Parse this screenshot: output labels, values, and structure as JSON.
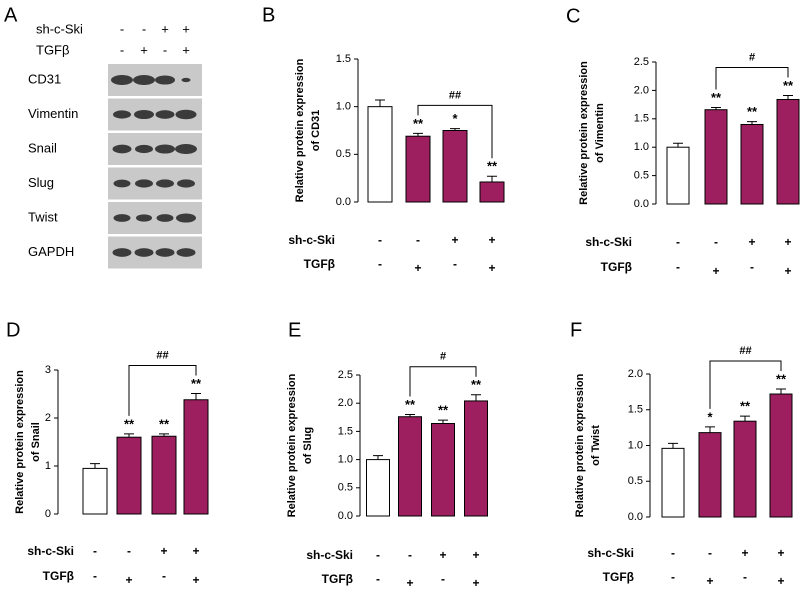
{
  "blot": {
    "panel": "A",
    "conditions": [
      {
        "name": "sh-c-Ski",
        "signs": [
          "-",
          "-",
          "+",
          "+"
        ]
      },
      {
        "name": "TGFβ",
        "signs": [
          "-",
          "+",
          "-",
          "+"
        ]
      }
    ],
    "rows": [
      "CD31",
      "Vimentin",
      "Snail",
      "Slug",
      "Twist",
      "GAPDH"
    ]
  },
  "chart_data": [
    {
      "type": "bar",
      "panel": "B",
      "ylabel": [
        "Relative protein expression",
        "of CD31"
      ],
      "values": [
        1.0,
        0.69,
        0.75,
        0.21
      ],
      "errors": [
        0.07,
        0.03,
        0.02,
        0.06
      ],
      "colors": [
        "#ffffff",
        "#9e1f5f",
        "#9e1f5f",
        "#9e1f5f"
      ],
      "annotations": [
        null,
        "**",
        "*",
        "**"
      ],
      "bracket_label": "##",
      "ylim": [
        0,
        1.5
      ],
      "yticks": [
        {
          "value": 0,
          "label": "0.0"
        },
        0.5,
        {
          "value": 1,
          "label": "1.0"
        },
        1.5
      ],
      "conditions": [
        {
          "name": "sh-c-Ski",
          "signs": [
            "-",
            "-",
            "+",
            "+"
          ]
        },
        {
          "name": "TGFβ",
          "signs": [
            "-",
            "+",
            "-",
            "+"
          ]
        }
      ]
    },
    {
      "type": "bar",
      "panel": "C",
      "ylabel": [
        "Relative protein expression",
        "of Vimentin"
      ],
      "values": [
        1.0,
        1.66,
        1.4,
        1.84
      ],
      "errors": [
        0.07,
        0.04,
        0.05,
        0.07
      ],
      "colors": [
        "#ffffff",
        "#9e1f5f",
        "#9e1f5f",
        "#9e1f5f"
      ],
      "annotations": [
        null,
        "**",
        "**",
        "**"
      ],
      "bracket_label": "#",
      "ylim": [
        0,
        2.5
      ],
      "yticks": [
        {
          "value": 0,
          "label": "0.0"
        },
        0.5,
        {
          "value": 1,
          "label": "1.0"
        },
        1.5,
        {
          "value": 2,
          "label": "2.0"
        },
        2.5
      ],
      "conditions": [
        {
          "name": "sh-c-Ski",
          "signs": [
            "-",
            "-",
            "+",
            "+"
          ]
        },
        {
          "name": "TGFβ",
          "signs": [
            "-",
            "+",
            "-",
            "+"
          ]
        }
      ]
    },
    {
      "type": "bar",
      "panel": "D",
      "ylabel": [
        "Relative protein expression",
        "of Snail"
      ],
      "values": [
        0.95,
        1.6,
        1.62,
        2.38
      ],
      "errors": [
        0.1,
        0.07,
        0.05,
        0.13
      ],
      "colors": [
        "#ffffff",
        "#9e1f5f",
        "#9e1f5f",
        "#9e1f5f"
      ],
      "annotations": [
        null,
        "**",
        "**",
        "**"
      ],
      "bracket_label": "##",
      "ylim": [
        0,
        3
      ],
      "yticks": [
        0,
        1,
        2,
        3
      ],
      "conditions": [
        {
          "name": "sh-c-Ski",
          "signs": [
            "-",
            "-",
            "+",
            "+"
          ]
        },
        {
          "name": "TGFβ",
          "signs": [
            "-",
            "+",
            "-",
            "+"
          ]
        }
      ]
    },
    {
      "type": "bar",
      "panel": "E",
      "ylabel": [
        "Relative protein expression",
        "of Slug"
      ],
      "values": [
        1.0,
        1.76,
        1.64,
        2.04
      ],
      "errors": [
        0.07,
        0.04,
        0.06,
        0.11
      ],
      "colors": [
        "#ffffff",
        "#9e1f5f",
        "#9e1f5f",
        "#9e1f5f"
      ],
      "annotations": [
        null,
        "**",
        "**",
        "**"
      ],
      "bracket_label": "#",
      "ylim": [
        0,
        2.5
      ],
      "yticks": [
        {
          "value": 0,
          "label": "0.0"
        },
        0.5,
        {
          "value": 1,
          "label": "1.0"
        },
        1.5,
        {
          "value": 2,
          "label": "2.0"
        },
        2.5
      ],
      "conditions": [
        {
          "name": "sh-c-Ski",
          "signs": [
            "-",
            "-",
            "+",
            "+"
          ]
        },
        {
          "name": "TGFβ",
          "signs": [
            "-",
            "+",
            "-",
            "+"
          ]
        }
      ]
    },
    {
      "type": "bar",
      "panel": "F",
      "ylabel": [
        "Relative protein expression",
        "of Twist"
      ],
      "values": [
        0.96,
        1.18,
        1.34,
        1.72
      ],
      "errors": [
        0.07,
        0.08,
        0.07,
        0.07
      ],
      "colors": [
        "#ffffff",
        "#9e1f5f",
        "#9e1f5f",
        "#9e1f5f"
      ],
      "annotations": [
        null,
        "*",
        "**",
        "**"
      ],
      "bracket_label": "##",
      "ylim": [
        0,
        2
      ],
      "yticks": [
        {
          "value": 0,
          "label": "0.0"
        },
        0.5,
        {
          "value": 1,
          "label": "1.0"
        },
        1.5,
        {
          "value": 2,
          "label": "2.0"
        }
      ],
      "conditions": [
        {
          "name": "sh-c-Ski",
          "signs": [
            "-",
            "-",
            "+",
            "+"
          ]
        },
        {
          "name": "TGFβ",
          "signs": [
            "-",
            "+",
            "-",
            "+"
          ]
        }
      ]
    }
  ]
}
